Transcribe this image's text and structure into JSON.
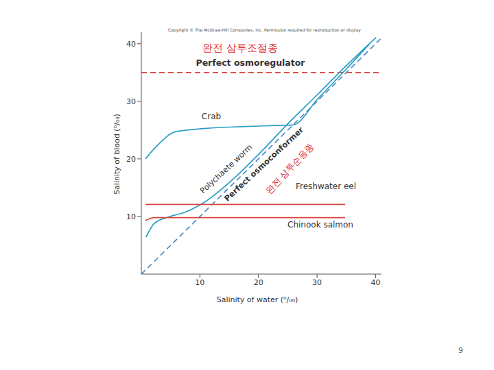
{
  "chart_data": {
    "type": "line",
    "x_label": "Salinity of water (⁰/₀₀)",
    "y_label": "Salinity of blood (⁰/₀₀)",
    "xlim": [
      0,
      41
    ],
    "ylim": [
      0,
      42
    ],
    "xticks": [
      10,
      20,
      30,
      40
    ],
    "yticks": [
      10,
      20,
      30,
      40
    ],
    "grid": false,
    "annotations": [
      "완전 삼투조절종",
      "완전 삼투순응종"
    ],
    "series": [
      {
        "name": "Perfect osmoregulator",
        "color": "#d9443c",
        "line_style": "dashed",
        "x": [
          0,
          41
        ],
        "values": [
          35.0,
          35.0
        ]
      },
      {
        "name": "Crab",
        "color": "#2a9cc4",
        "line_style": "solid",
        "x": [
          0.7,
          2.8,
          5.8,
          11.1,
          17.0,
          23.0,
          25.9,
          30.1,
          34.8,
          38.9
        ],
        "values": [
          20.0,
          22.4,
          24.7,
          25.3,
          25.6,
          25.8,
          25.9,
          30.4,
          35.4,
          39.9
        ]
      },
      {
        "name": "Polychaete worm",
        "color": "#2a9cc4",
        "line_style": "solid",
        "x": [
          0.8,
          2.2,
          4.6,
          7.6,
          11.1,
          15.9,
          20.6,
          25.3,
          30.1,
          34.8,
          40.1
        ],
        "values": [
          6.4,
          8.8,
          9.9,
          10.8,
          12.7,
          16.7,
          21.4,
          26.4,
          31.2,
          36.0,
          41.1
        ]
      },
      {
        "name": "Perfect osmoconformer",
        "color": "#4a8fc4",
        "line_style": "dashed",
        "x": [
          0,
          41
        ],
        "values": [
          0,
          41
        ]
      },
      {
        "name": "Freshwater eel",
        "color": "#d9443c",
        "line_style": "solid",
        "x": [
          0.7,
          34.8
        ],
        "values": [
          12.1,
          12.1
        ]
      },
      {
        "name": "Chinook salmon",
        "color": "#d9443c",
        "line_style": "solid",
        "x": [
          0.7,
          2.2,
          34.8
        ],
        "values": [
          9.3,
          9.8,
          9.8
        ]
      }
    ]
  },
  "copyright": "Copyright © The McGraw-Hill Companies, Inc. Permission required for reproduction or display",
  "page_number": "9"
}
